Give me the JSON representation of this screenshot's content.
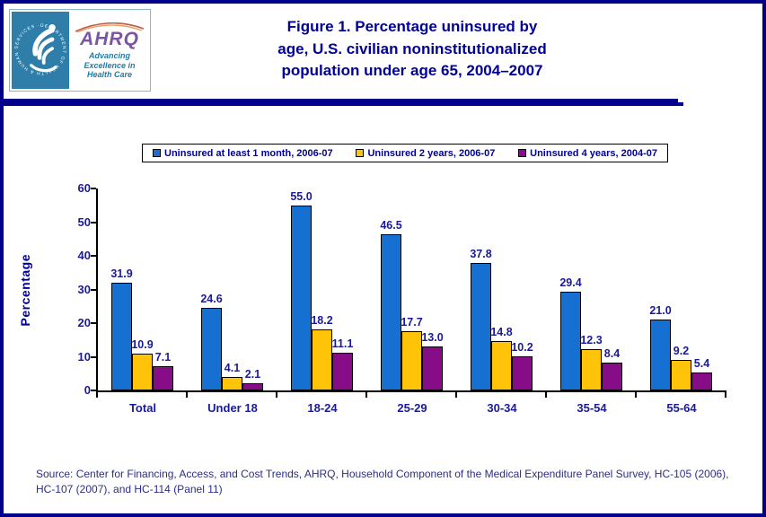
{
  "header": {
    "logo": {
      "seal_text": "DEPARTMENT OF HEALTH & HUMAN SERVICES · USA",
      "ahrq_acronym": "AHRQ",
      "tagline_lines": [
        "Advancing",
        "Excellence in",
        "Health Care"
      ]
    },
    "title_lines": [
      "Figure 1. Percentage uninsured by",
      "age, U.S. civilian noninstitutionalized",
      "population under age 65, 2004–2007"
    ]
  },
  "chart_data": {
    "type": "bar",
    "title": "Figure 1. Percentage uninsured by age, U.S. civilian noninstitutionalized population under age 65, 2004–2007",
    "categories": [
      "Total",
      "Under 18",
      "18-24",
      "25-29",
      "30-34",
      "35-54",
      "55-64"
    ],
    "series": [
      {
        "name": "Uninsured at least 1 month, 2006-07",
        "color": "#1570d2",
        "values": [
          31.9,
          24.6,
          55.0,
          46.5,
          37.8,
          29.4,
          21.0
        ]
      },
      {
        "name": "Uninsured 2 years, 2006-07",
        "color": "#ffc40a",
        "values": [
          10.9,
          4.1,
          18.2,
          17.7,
          14.8,
          12.3,
          9.2
        ]
      },
      {
        "name": "Uninsured 4 years, 2004-07",
        "color": "#870c87",
        "values": [
          7.1,
          2.1,
          11.1,
          13.0,
          10.2,
          8.4,
          5.4
        ]
      }
    ],
    "xlabel": "",
    "ylabel": "Percentage",
    "ylim": [
      0,
      60
    ],
    "yticks": [
      0,
      10,
      20,
      30,
      40,
      50,
      60
    ],
    "grid": false,
    "legend_position": "top",
    "data_labels": true
  },
  "footer": {
    "source_lines": [
      "Source: Center for Financing, Access, and Cost Trends, AHRQ, Household Component of the Medical Expenditure Panel Survey, HC-105 (2006),",
      "HC-107 (2007), and HC-114 (Panel 11)"
    ]
  },
  "colors": {
    "page_border": "#00008b",
    "title_text": "#000099",
    "chart_text": "#1a1a99",
    "hhs_teal": "#2f7ea9",
    "ahrq_purple": "#7b55a2",
    "tagline_teal": "#1f7ca6",
    "source_text": "#2d2d86"
  }
}
